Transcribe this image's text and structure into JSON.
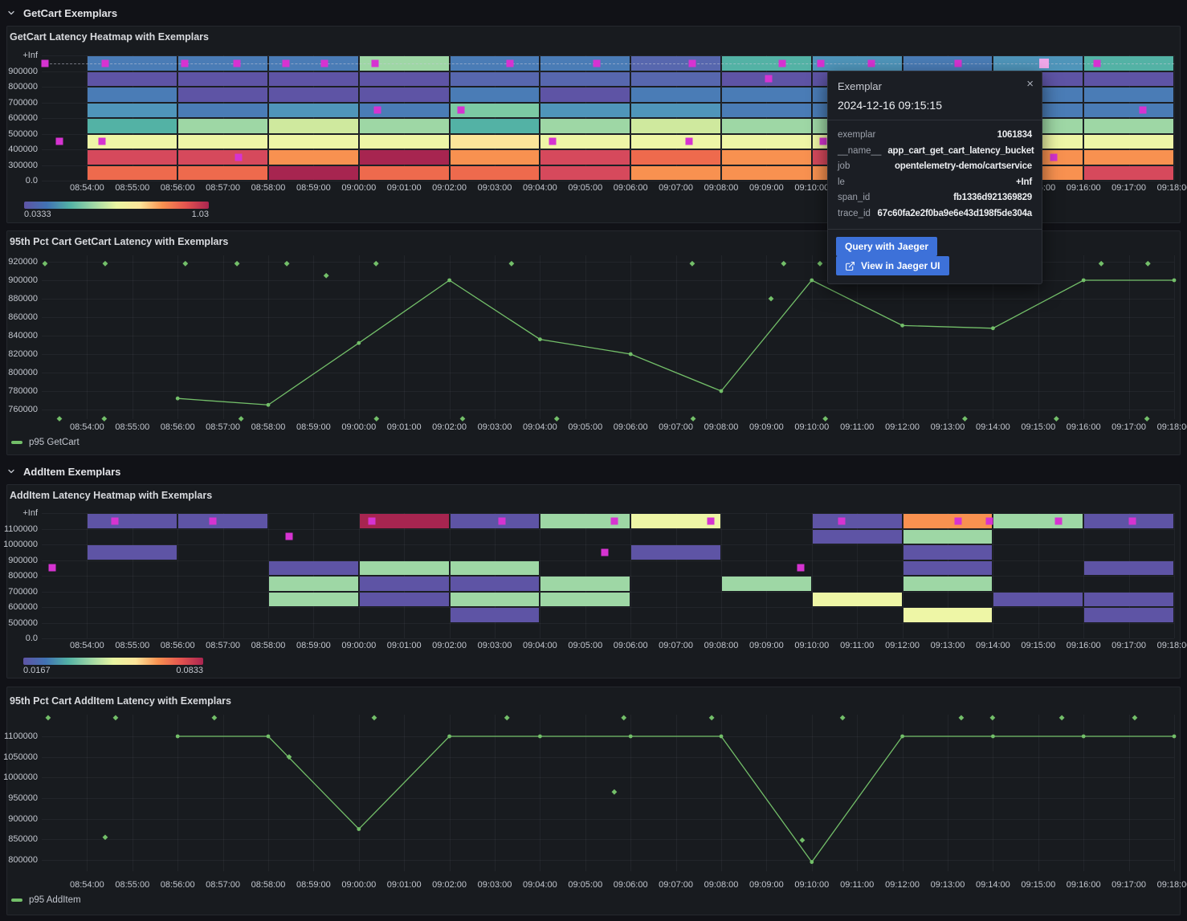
{
  "colors": {
    "palette": {
      "P": "#5e54a5",
      "PB": "#5767ae",
      "B": "#4a7cb6",
      "LB": "#4f95ba",
      "T": "#53b2a5",
      "TG": "#7ccaa4",
      "G": "#9ed7a5",
      "YG": "#cfe99e",
      "Y": "#eef6a6",
      "CR": "#fce59a",
      "O": "#f89150",
      "OR": "#ee6a4d",
      "R": "#d6495c",
      "DR": "#a72550"
    },
    "exemplar": "#d633d1",
    "exemplar_selected": "#f0a8ea",
    "series_green": "#73bf69",
    "accent_blue": "#3d71d9"
  },
  "rows": {
    "row1": {
      "title": "GetCart Exemplars"
    },
    "row2": {
      "title": "AddItem Exemplars"
    }
  },
  "x_ticks": [
    "08:54:00",
    "08:55:00",
    "08:56:00",
    "08:57:00",
    "08:58:00",
    "08:59:00",
    "09:00:00",
    "09:01:00",
    "09:02:00",
    "09:03:00",
    "09:04:00",
    "09:05:00",
    "09:06:00",
    "09:07:00",
    "09:08:00",
    "09:09:00",
    "09:10:00",
    "09:11:00",
    "09:12:00",
    "09:13:00",
    "09:14:00",
    "09:15:00",
    "09:16:00",
    "09:17:00",
    "09:18:00"
  ],
  "chart_data": [
    {
      "type": "heatmap",
      "title": "GetCart Latency Heatmap with Exemplars",
      "y_tick_labels": [
        "+Inf",
        "900000",
        "800000",
        "700000",
        "600000",
        "500000",
        "400000",
        "300000",
        "0.0"
      ],
      "column_start_time": "08:54:00",
      "column_span_minutes": 2,
      "grid": [
        [
          "B",
          "B",
          "B",
          "G",
          "B",
          "B",
          "PB",
          "T",
          "LB",
          "B",
          "LB",
          "T"
        ],
        [
          "P",
          "P",
          "P",
          "P",
          "PB",
          "PB",
          "PB",
          "P",
          "P",
          "P",
          "P",
          "P"
        ],
        [
          "B",
          "P",
          "P",
          "P",
          "B",
          "P",
          "B",
          "B",
          "B",
          "B",
          "B",
          "B"
        ],
        [
          "LB",
          "B",
          "LB",
          "B",
          "TG",
          "LB",
          "LB",
          "B",
          "B",
          "B",
          "B",
          "B"
        ],
        [
          "T",
          "G",
          "YG",
          "G",
          "T",
          "G",
          "YG",
          "G",
          "G",
          "G",
          "G",
          "G"
        ],
        [
          "Y",
          "Y",
          "Y",
          "Y",
          "CR",
          "Y",
          "Y",
          "Y",
          "Y",
          "Y",
          "Y",
          "Y"
        ],
        [
          "R",
          "R",
          "O",
          "DR",
          "O",
          "R",
          "OR",
          "O",
          "R",
          "O",
          "O",
          "O"
        ],
        [
          "OR",
          "OR",
          "DR",
          "OR",
          "OR",
          "R",
          "O",
          "O",
          "O",
          "O",
          "O",
          "R"
        ]
      ],
      "exemplars": [
        [
          0.07,
          0
        ],
        [
          1.4,
          0
        ],
        [
          3.16,
          0
        ],
        [
          4.31,
          0
        ],
        [
          5.39,
          0
        ],
        [
          6.24,
          0
        ],
        [
          7.36,
          0
        ],
        [
          10.34,
          0
        ],
        [
          12.25,
          0
        ],
        [
          14.36,
          0
        ],
        [
          16.35,
          0
        ],
        [
          17.2,
          0
        ],
        [
          18.32,
          0
        ],
        [
          20.23,
          0
        ],
        [
          23.3,
          0
        ],
        [
          16.05,
          1
        ],
        [
          7.41,
          3
        ],
        [
          9.26,
          3
        ],
        [
          24.31,
          3
        ],
        [
          0.39,
          5
        ],
        [
          1.33,
          5
        ],
        [
          11.28,
          5
        ],
        [
          14.29,
          5
        ],
        [
          17.25,
          5
        ],
        [
          4.34,
          6
        ],
        [
          22.34,
          6
        ]
      ],
      "selected_exemplar": [
        22.13,
        0
      ],
      "has_exemplar_dash_line": true,
      "legend": {
        "min": "0.0333",
        "max": "1.03"
      }
    },
    {
      "type": "line",
      "title": "95th Pct Cart GetCart Latency with Exemplars",
      "series_label": "p95 GetCart",
      "y_tick_values": [
        920000,
        900000,
        880000,
        860000,
        840000,
        820000,
        800000,
        780000,
        760000
      ],
      "points": [
        [
          3,
          772000
        ],
        [
          5,
          765000
        ],
        [
          7,
          832000
        ],
        [
          9,
          900000
        ],
        [
          11,
          836000
        ],
        [
          13,
          820000
        ],
        [
          15,
          780000
        ],
        [
          17,
          900000
        ],
        [
          19,
          851000
        ],
        [
          21,
          848000
        ],
        [
          23,
          900000
        ],
        [
          25,
          900000
        ]
      ],
      "exemplars": [
        [
          0.07,
          918000
        ],
        [
          1.4,
          918000
        ],
        [
          3.17,
          918000
        ],
        [
          4.31,
          918000
        ],
        [
          5.41,
          918000
        ],
        [
          7.38,
          918000
        ],
        [
          10.37,
          918000
        ],
        [
          14.36,
          918000
        ],
        [
          16.38,
          918000
        ],
        [
          17.18,
          918000
        ],
        [
          23.39,
          918000
        ],
        [
          24.42,
          918000
        ],
        [
          6.28,
          905000
        ],
        [
          16.1,
          880000
        ],
        [
          0.39,
          750000
        ],
        [
          1.38,
          750000
        ],
        [
          4.4,
          750000
        ],
        [
          7.39,
          750000
        ],
        [
          9.29,
          750000
        ],
        [
          11.37,
          750000
        ],
        [
          14.38,
          750000
        ],
        [
          17.3,
          750000
        ],
        [
          20.38,
          750000
        ],
        [
          22.4,
          750000
        ],
        [
          24.4,
          750000
        ]
      ]
    },
    {
      "type": "heatmap",
      "title": "AddItem Latency Heatmap with Exemplars",
      "y_tick_labels": [
        "+Inf",
        "1100000",
        "1000000",
        "900000",
        "800000",
        "700000",
        "600000",
        "500000",
        "0.0"
      ],
      "column_start_time": "08:54:00",
      "column_span_minutes": 2,
      "grid": [
        [
          "P",
          "P",
          null,
          "DR",
          "P",
          "G",
          "Y",
          null,
          "P",
          "O",
          "G",
          "P"
        ],
        [
          null,
          null,
          null,
          null,
          null,
          null,
          null,
          null,
          "P",
          "G",
          null,
          null
        ],
        [
          "P",
          null,
          null,
          null,
          null,
          null,
          "P",
          null,
          null,
          "P",
          null,
          null
        ],
        [
          null,
          null,
          "P",
          "G",
          "G",
          null,
          null,
          null,
          null,
          "P",
          null,
          "P"
        ],
        [
          null,
          null,
          "G",
          "P",
          "P",
          "G",
          null,
          "G",
          null,
          "G",
          null,
          null
        ],
        [
          null,
          null,
          "G",
          "P",
          "G",
          "G",
          null,
          null,
          "Y",
          null,
          "P",
          "P"
        ],
        [
          null,
          null,
          null,
          null,
          "P",
          null,
          null,
          null,
          null,
          "Y",
          null,
          "P"
        ],
        [
          null,
          null,
          null,
          null,
          null,
          null,
          null,
          null,
          null,
          null,
          null,
          null
        ]
      ],
      "exemplars": [
        [
          1.61,
          0
        ],
        [
          3.78,
          0
        ],
        [
          7.29,
          0
        ],
        [
          10.16,
          0
        ],
        [
          12.64,
          0
        ],
        [
          14.77,
          0
        ],
        [
          17.66,
          0
        ],
        [
          20.23,
          0
        ],
        [
          20.92,
          0
        ],
        [
          22.45,
          0
        ],
        [
          24.08,
          0
        ],
        [
          5.46,
          1
        ],
        [
          12.43,
          2
        ],
        [
          0.23,
          3
        ],
        [
          16.76,
          3
        ]
      ],
      "selected_exemplar": null,
      "has_exemplar_dash_line": false,
      "legend": {
        "min": "0.0167",
        "max": "0.0833"
      }
    },
    {
      "type": "line",
      "title": "95th Pct Cart AddItem Latency with Exemplars",
      "series_label": "p95 AddItem",
      "y_tick_values": [
        1100000,
        1050000,
        1000000,
        950000,
        900000,
        850000,
        800000
      ],
      "points": [
        [
          3,
          1100000
        ],
        [
          5,
          1100000
        ],
        [
          7,
          875000
        ],
        [
          9,
          1100000
        ],
        [
          11,
          1100000
        ],
        [
          13,
          1100000
        ],
        [
          15,
          1100000
        ],
        [
          17,
          795000
        ],
        [
          19,
          1100000
        ],
        [
          21,
          1100000
        ],
        [
          23,
          1100000
        ],
        [
          25,
          1100000
        ]
      ],
      "exemplars": [
        [
          0.14,
          1145000
        ],
        [
          1.63,
          1145000
        ],
        [
          3.81,
          1145000
        ],
        [
          7.34,
          1145000
        ],
        [
          10.27,
          1145000
        ],
        [
          12.85,
          1145000
        ],
        [
          14.79,
          1145000
        ],
        [
          17.68,
          1145000
        ],
        [
          20.3,
          1145000
        ],
        [
          20.99,
          1145000
        ],
        [
          22.52,
          1145000
        ],
        [
          24.13,
          1145000
        ],
        [
          1.4,
          855000
        ],
        [
          5.46,
          1050000
        ],
        [
          12.64,
          965000
        ],
        [
          16.79,
          848000
        ]
      ]
    }
  ],
  "tooltip": {
    "title": "Exemplar",
    "time": "2024-12-16 09:15:15",
    "close_label": "×",
    "rows": [
      {
        "k": "exemplar",
        "v": "1061834"
      },
      {
        "k": "__name__",
        "v": "app_cart_get_cart_latency_bucket"
      },
      {
        "k": "job",
        "v": "opentelemetry-demo/cartservice"
      },
      {
        "k": "le",
        "v": "+Inf"
      },
      {
        "k": "span_id",
        "v": "fb1336d921369829"
      },
      {
        "k": "trace_id",
        "v": "67c60fa2e2f0ba9e6e43d198f5de304a"
      }
    ],
    "buttons": [
      "Query with Jaeger",
      "View in Jaeger UI"
    ]
  }
}
